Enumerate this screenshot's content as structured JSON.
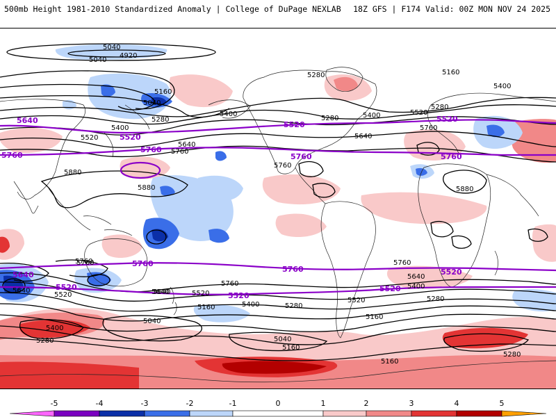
{
  "header": {
    "title": "500mb Height 1981-2010 Standardized Anomaly | College of DuPage NEXLAB",
    "run_info": "18Z GFS | F174 Valid: 00Z MON NOV 24 2025"
  },
  "colors": {
    "contour_black": "#000000",
    "contour_purple": "#8a00c8",
    "neg5": "#ff66ff",
    "neg4": "#7a00c0",
    "neg3": "#0b2fa8",
    "neg2": "#3a6ee8",
    "neg1": "#bcd6fa",
    "zero": "#ffffff",
    "pos1": "#f9c9c9",
    "pos2": "#f18888",
    "pos3": "#e33434",
    "pos4": "#b30000",
    "pos5": "#ffa000"
  },
  "colorbar": {
    "ticks": [
      "-5",
      "-4",
      "-3",
      "-2",
      "-1",
      "0",
      "1",
      "2",
      "3",
      "4",
      "5"
    ]
  },
  "contour_labels": {
    "black": [
      "5040",
      "4920",
      "5040",
      "5160",
      "5040",
      "5280",
      "5400",
      "5520",
      "5400",
      "5640",
      "5760",
      "5880",
      "5880",
      "5280",
      "5160",
      "5400",
      "5280",
      "5400",
      "5520",
      "5280",
      "5640",
      "5760",
      "5760",
      "5880",
      "5640",
      "5520",
      "5640",
      "5760",
      "5520",
      "5640",
      "5760",
      "5520",
      "5400",
      "5280",
      "5160",
      "5040",
      "5400",
      "5280",
      "5160",
      "5040",
      "5160",
      "5160",
      "5280",
      "5400",
      "5280",
      "5640",
      "5760",
      "5760"
    ],
    "purple": [
      "5640",
      "5520",
      "5760",
      "5760",
      "5520",
      "5520",
      "5760",
      "5640",
      "5520",
      "5760",
      "5760",
      "5760",
      "5520",
      "5520",
      "5520"
    ]
  }
}
